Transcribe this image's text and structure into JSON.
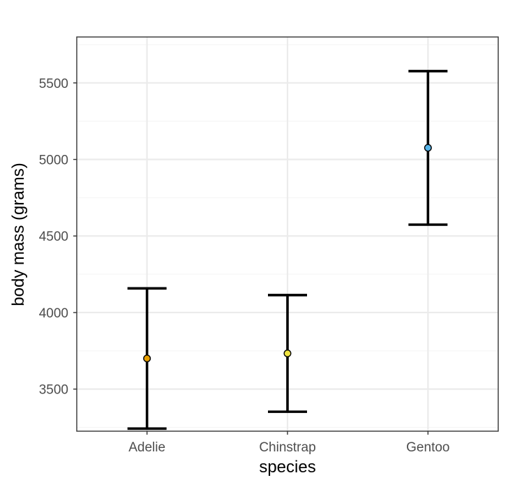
{
  "chart_data": {
    "type": "errorbar",
    "title": "",
    "xlabel": "species",
    "ylabel": "body mass (grams)",
    "categories": [
      "Adelie",
      "Chinstrap",
      "Gentoo"
    ],
    "mean": [
      3700,
      3733,
      5076
    ],
    "lower": [
      3242,
      3352,
      4574
    ],
    "upper": [
      4158,
      4114,
      5577
    ],
    "point_colors": [
      "#E69F00",
      "#F0E442",
      "#56B4E9"
    ],
    "ylim": [
      3225,
      5800
    ],
    "yticks": [
      3500,
      4000,
      4500,
      5000,
      5500
    ],
    "ytick_labels": [
      "3500",
      "4000",
      "4500",
      "5000",
      "5500"
    ],
    "grid": true,
    "legend": "none",
    "colors": {
      "panel_border": "#333333",
      "grid_major": "#ebebeb",
      "grid_minor": "#f5f5f5",
      "errorbar": "#000000",
      "point_outline": "#000000"
    }
  }
}
